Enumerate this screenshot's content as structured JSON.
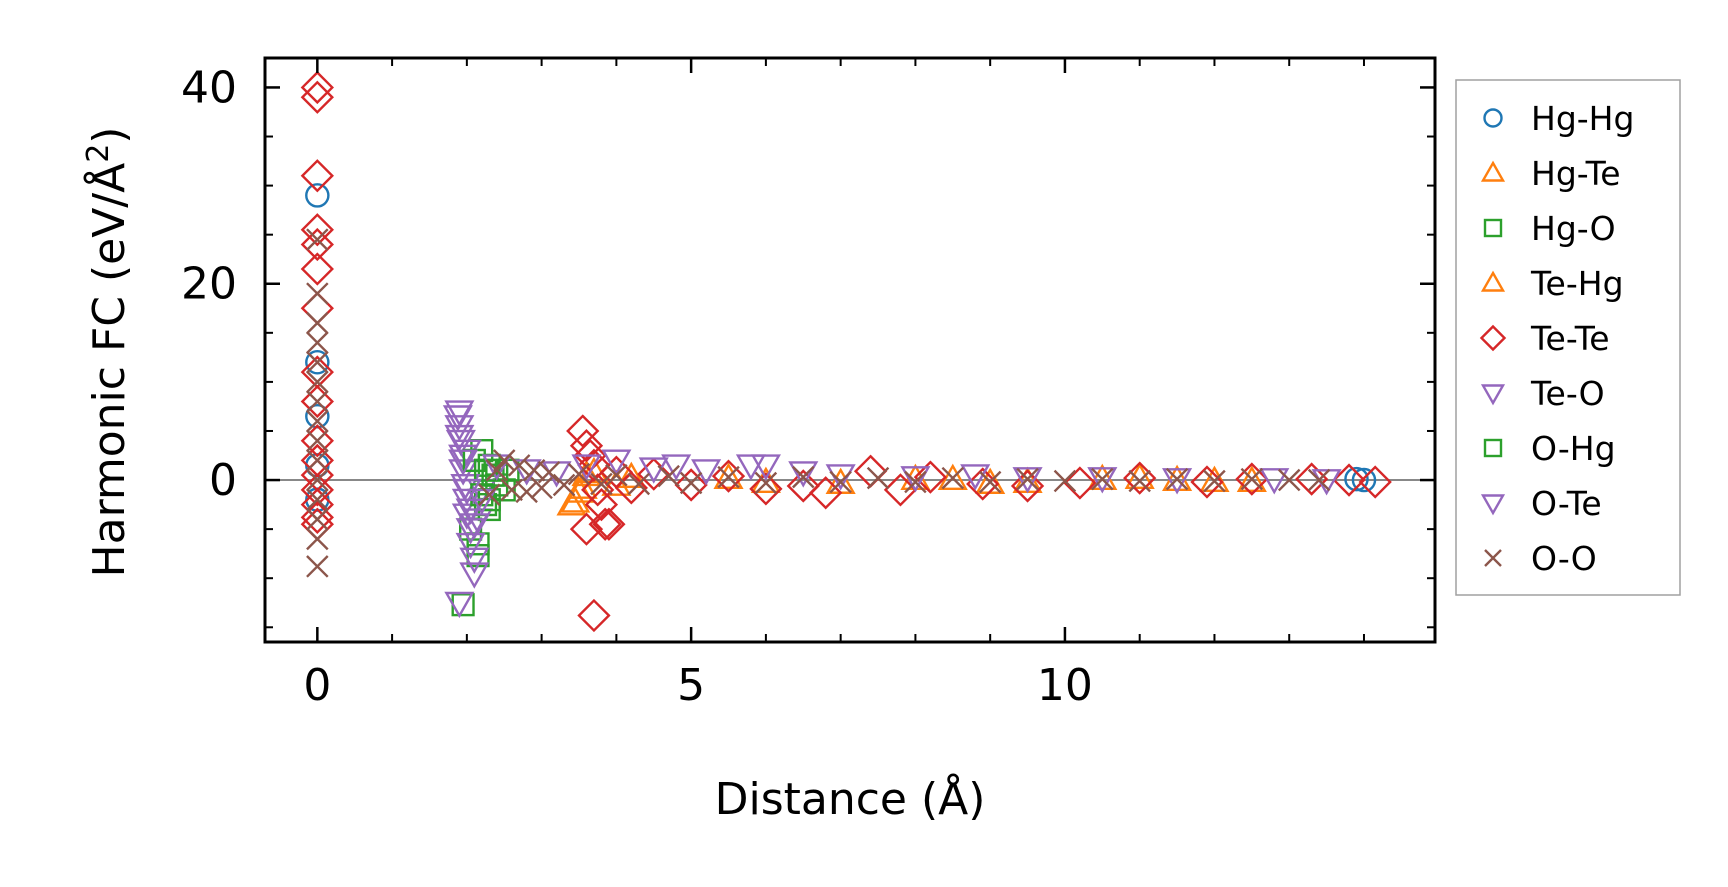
{
  "chart_data": {
    "type": "scatter",
    "title": "",
    "xlabel": "Distance (Å)",
    "ylabel": "Harmonic FC (eV/Å²)",
    "ylabel_main": "Harmonic FC (eV/Å",
    "ylabel_sup": "2",
    "ylabel_close": ")",
    "xlim": [
      -0.7,
      14.95
    ],
    "ylim": [
      -16.5,
      43.0
    ],
    "xticks": [
      0,
      5,
      10
    ],
    "xtick_labels": [
      "0",
      "5",
      "10"
    ],
    "yticks": [
      0,
      20,
      40
    ],
    "ytick_labels": [
      "0",
      "20",
      "40"
    ],
    "x_minor_step": 1,
    "y_minor_step": 5,
    "zero_line": true,
    "grid": false,
    "legend_position": "outside-right",
    "series": [
      {
        "name": "Hg-Hg",
        "marker": "circle",
        "color": "#1f77b4",
        "x": [
          0,
          0,
          0,
          0,
          0,
          14.0,
          13.9
        ],
        "y": [
          29.0,
          12.0,
          6.5,
          1.5,
          -2.0,
          0.0,
          0.1
        ]
      },
      {
        "name": "Hg-Te",
        "marker": "triangle-up",
        "color": "#ff7f0e",
        "x": [
          3.4,
          3.5,
          3.6,
          4.0,
          5.5,
          7.0,
          8.5,
          9.5,
          10.5,
          11.5,
          12.5
        ],
        "y": [
          -2.5,
          -1.2,
          0.5,
          -0.5,
          0.2,
          -0.3,
          0.1,
          -0.2,
          0.1,
          0.0,
          -0.1
        ]
      },
      {
        "name": "Hg-O",
        "marker": "square",
        "color": "#2ca02c",
        "x": [
          1.95,
          2.05,
          2.15,
          2.15,
          2.2,
          2.25,
          2.3,
          2.3,
          2.4,
          2.5,
          2.55
        ],
        "y": [
          -12.7,
          -5.0,
          -7.7,
          -6.5,
          3.0,
          -2.5,
          1.5,
          -3.0,
          0.5,
          -1.0,
          1.0
        ]
      },
      {
        "name": "Te-Hg",
        "marker": "triangle-up",
        "color": "#ff7f0e",
        "x": [
          3.45,
          3.55,
          3.7,
          4.2,
          6.0,
          8.0,
          9.0,
          11.0,
          12.0
        ],
        "y": [
          -2.2,
          -0.8,
          0.8,
          0.3,
          -0.2,
          0.1,
          -0.3,
          0.2,
          -0.1
        ]
      },
      {
        "name": "Te-Te",
        "marker": "diamond",
        "color": "#d62728",
        "x": [
          0,
          0,
          0,
          0,
          0,
          0,
          0,
          0,
          0,
          0,
          0,
          0,
          0,
          0,
          0,
          0,
          3.55,
          3.6,
          3.65,
          3.7,
          3.75,
          3.8,
          3.85,
          3.9,
          3.6,
          3.7,
          4.0,
          4.2,
          4.5,
          5.0,
          5.5,
          6.0,
          6.5,
          6.8,
          7.4,
          7.8,
          8.2,
          8.9,
          9.5,
          10.2,
          11.0,
          11.9,
          12.5,
          13.3,
          13.8,
          14.15
        ],
        "y": [
          40.0,
          39.0,
          31.0,
          25.5,
          24.0,
          21.5,
          17.5,
          11.0,
          8.0,
          4.0,
          2.0,
          0.5,
          -1.0,
          -2.5,
          -3.8,
          -4.5,
          5.0,
          3.5,
          2.5,
          1.5,
          -1.0,
          -2.5,
          -4.5,
          -4.5,
          -5.0,
          -13.8,
          0.8,
          -0.8,
          0.6,
          -0.5,
          0.4,
          -0.9,
          -0.6,
          -1.3,
          0.9,
          -1.0,
          0.3,
          -0.4,
          -0.6,
          -0.3,
          0.2,
          -0.2,
          0.1,
          0.1,
          0.0,
          -0.2
        ]
      },
      {
        "name": "Te-O",
        "marker": "triangle-down",
        "color": "#9467bd",
        "x": [
          1.9,
          1.9,
          1.92,
          1.95,
          1.95,
          1.98,
          2.0,
          2.0,
          2.05,
          2.05,
          2.1,
          2.1,
          2.15,
          2.2,
          1.9,
          2.0
        ],
        "y": [
          7.0,
          5.5,
          4.0,
          2.5,
          1.0,
          -0.5,
          -2.0,
          -3.5,
          -5.0,
          -6.5,
          -8.0,
          -9.5,
          -4.0,
          -1.0,
          -12.5,
          3.0
        ]
      },
      {
        "name": "O-Hg",
        "marker": "square",
        "color": "#2ca02c",
        "x": [
          2.1,
          2.2,
          2.25,
          2.3,
          2.35,
          2.4
        ],
        "y": [
          2.0,
          -1.5,
          1.0,
          -2.0,
          0.5,
          -0.5
        ]
      },
      {
        "name": "O-Te",
        "marker": "triangle-down",
        "color": "#9467bd",
        "x": [
          1.88,
          1.9,
          1.95,
          2.0,
          2.05,
          2.1,
          2.2,
          2.4,
          2.8,
          3.2,
          3.6,
          4.0,
          4.5,
          4.8,
          5.2,
          5.8,
          6.0,
          6.5,
          7.0,
          8.0,
          8.8,
          9.5,
          10.5,
          11.5,
          12.8,
          13.5
        ],
        "y": [
          6.5,
          4.5,
          2.0,
          -1.0,
          -3.0,
          -4.5,
          -2.0,
          1.5,
          1.0,
          0.8,
          1.5,
          2.0,
          1.2,
          1.5,
          1.0,
          1.5,
          1.5,
          0.8,
          0.5,
          0.3,
          0.5,
          0.2,
          0.2,
          0.1,
          0.1,
          0.0
        ]
      },
      {
        "name": "O-O",
        "marker": "x",
        "color": "#8c564b",
        "x": [
          0,
          0,
          0,
          0,
          0,
          0,
          0,
          0,
          0,
          0,
          0,
          0,
          0,
          0,
          0,
          2.3,
          2.4,
          2.5,
          2.6,
          2.7,
          2.8,
          2.9,
          3.0,
          3.1,
          3.3,
          3.5,
          3.8,
          4.0,
          4.3,
          4.7,
          5.0,
          5.5,
          6.0,
          6.5,
          7.0,
          7.5,
          8.0,
          8.5,
          9.0,
          9.5,
          10.0,
          10.5,
          11.0,
          11.5,
          12.0,
          12.5,
          13.0,
          13.4
        ],
        "y": [
          24.5,
          19.0,
          16.0,
          14.0,
          12.0,
          10.0,
          8.0,
          6.0,
          4.0,
          2.0,
          0.0,
          -2.0,
          -4.0,
          -6.0,
          -8.8,
          -1.5,
          1.0,
          2.0,
          -1.0,
          1.5,
          -1.2,
          1.0,
          -0.8,
          0.8,
          -0.5,
          0.6,
          -0.4,
          0.5,
          -0.4,
          0.4,
          -0.3,
          0.3,
          -0.3,
          0.3,
          -0.2,
          0.2,
          -0.2,
          0.2,
          -0.2,
          0.1,
          -0.1,
          0.1,
          -0.1,
          0.1,
          -0.1,
          0.1,
          0.0,
          0.0
        ]
      }
    ]
  }
}
